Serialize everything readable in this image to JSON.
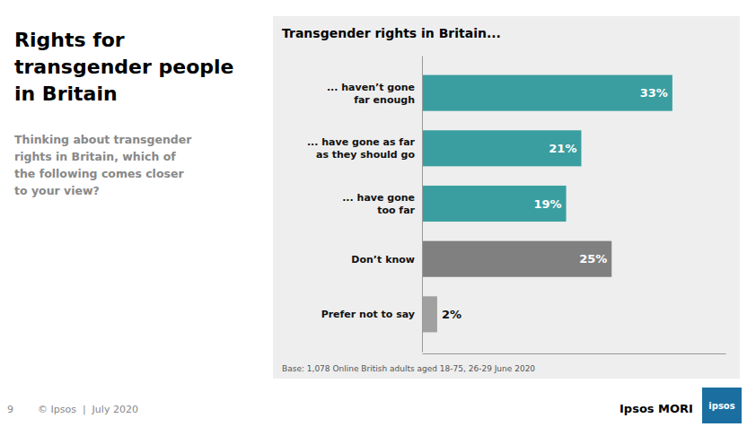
{
  "chart_data": {
    "type": "bar",
    "orientation": "horizontal",
    "title": "Rights for\ntransgender people\nin Britain",
    "subtitle": "Thinking about transgender\nrights in Britain, which of\nthe following comes closer\nto your view?",
    "categories": [
      "... haven’t gone\nfar enough",
      "... have gone as far\nas they should go",
      "... have gone\ntoo far",
      "Don’t know",
      "Prefer not to say"
    ],
    "values": [
      33,
      21,
      19,
      25,
      2
    ],
    "value_labels": [
      "33%",
      "21%",
      "19%",
      "25%",
      "2%"
    ],
    "colors": [
      "#3a9ea0",
      "#3a9ea0",
      "#3a9ea0",
      "#808080",
      "#a0a0a0"
    ],
    "data_labels": true,
    "xlim": [
      0,
      40
    ],
    "tick_labels": false,
    "grid": false,
    "annotations": [
      "Transgender rights in Britain...",
      "Base: 1,078 Online British adults aged 18-75, 26-29 June 2020",
      "9",
      "© Ipsos  |  July 2020",
      "Ipsos MORI",
      "ipsos"
    ]
  }
}
